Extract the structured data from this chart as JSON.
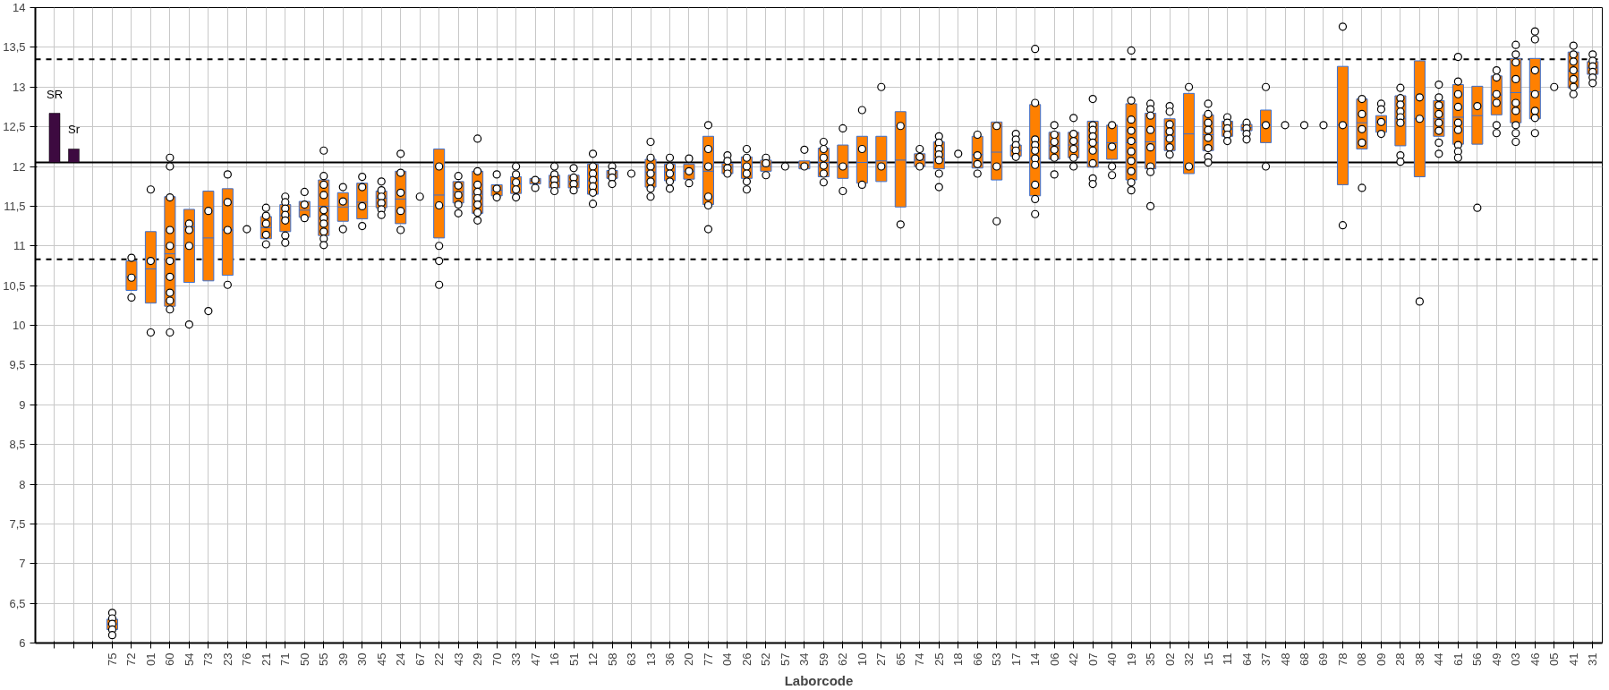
{
  "chart_data": {
    "type": "box",
    "xlabel": "Laborcode",
    "grid": true,
    "marker": "circle",
    "ylim": [
      6,
      14
    ],
    "yticks": [
      6,
      {
        "value": 6.5,
        "label": "6,5"
      },
      7,
      {
        "value": 7.5,
        "label": "7,5"
      },
      8,
      {
        "value": 8.5,
        "label": "8,5"
      },
      9,
      {
        "value": 9.5,
        "label": "9,5"
      },
      10,
      {
        "value": 10.5,
        "label": "10,5"
      },
      11,
      {
        "value": 11.5,
        "label": "11,5"
      },
      12,
      {
        "value": 12.5,
        "label": "12,5"
      },
      13,
      {
        "value": 13.5,
        "label": "13,5"
      },
      14
    ],
    "categories": [
      null,
      null,
      null,
      "75",
      "72",
      "01",
      "60",
      "54",
      "73",
      "23",
      "76",
      "21",
      "71",
      "50",
      "55",
      "39",
      "30",
      "45",
      "24",
      "67",
      "22",
      "43",
      "29",
      "70",
      "33",
      "47",
      "16",
      "51",
      "12",
      "58",
      "63",
      "13",
      "36",
      "20",
      "77",
      "04",
      "26",
      "52",
      "57",
      "34",
      "59",
      "62",
      "10",
      "27",
      "65",
      "74",
      "25",
      "18",
      "66",
      "53",
      "17",
      "14",
      "06",
      "42",
      "07",
      "40",
      "19",
      "35",
      "02",
      "32",
      "15",
      "11",
      "64",
      "37",
      "48",
      "68",
      "69",
      "78",
      "08",
      "09",
      "28",
      "38",
      "44",
      "61",
      "56",
      "49",
      "03",
      "46",
      "05",
      "41",
      "31"
    ],
    "ref_lines": [
      {
        "axis": "y",
        "value": 12.05,
        "line_style": "solid",
        "color": "#000000"
      },
      {
        "axis": "y",
        "value": 13.35,
        "line_style": "dashed",
        "color": "#000000"
      },
      {
        "axis": "y",
        "value": 10.83,
        "line_style": "dashed",
        "color": "#000000"
      }
    ],
    "series": [
      {
        "type": "bar",
        "color": "#3d0a40",
        "values": [
          0.62,
          0.17,
          null,
          null,
          null,
          null,
          null,
          null,
          null,
          null,
          null,
          null,
          null,
          null,
          null,
          null,
          null,
          null,
          null,
          null,
          null,
          null,
          null,
          null,
          null,
          null,
          null,
          null,
          null,
          null,
          null,
          null,
          null,
          null,
          null,
          null,
          null,
          null,
          null,
          null,
          null,
          null,
          null,
          null,
          null,
          null,
          null,
          null,
          null,
          null,
          null,
          null,
          null,
          null,
          null,
          null,
          null,
          null,
          null,
          null,
          null,
          null,
          null,
          null,
          null,
          null,
          null,
          null,
          null,
          null,
          null,
          null,
          null,
          null,
          null,
          null,
          null,
          null,
          null,
          null,
          null
        ],
        "base": [
          12.05,
          12.05,
          null,
          null,
          null,
          null,
          null,
          null,
          null,
          null,
          null,
          null,
          null,
          null,
          null,
          null,
          null,
          null,
          null,
          null,
          null,
          null,
          null,
          null,
          null,
          null,
          null,
          null,
          null,
          null,
          null,
          null,
          null,
          null,
          null,
          null,
          null,
          null,
          null,
          null,
          null,
          null,
          null,
          null,
          null,
          null,
          null,
          null,
          null,
          null,
          null,
          null,
          null,
          null,
          null,
          null,
          null,
          null,
          null,
          null,
          null,
          null,
          null,
          null,
          null,
          null,
          null,
          null,
          null,
          null,
          null,
          null,
          null,
          null,
          null,
          null,
          null,
          null,
          null,
          null,
          null
        ],
        "value_labels": [
          "SR",
          "Sr",
          null,
          null,
          null,
          null,
          null,
          null,
          null,
          null,
          null,
          null,
          null,
          null,
          null,
          null,
          null,
          null,
          null,
          null,
          null,
          null,
          null,
          null,
          null,
          null,
          null,
          null,
          null,
          null,
          null,
          null,
          null,
          null,
          null,
          null,
          null,
          null,
          null,
          null,
          null,
          null,
          null,
          null,
          null,
          null,
          null,
          null,
          null,
          null,
          null,
          null,
          null,
          null,
          null,
          null,
          null,
          null,
          null,
          null,
          null,
          null,
          null,
          null,
          null,
          null,
          null,
          null,
          null,
          null,
          null,
          null,
          null,
          null,
          null,
          null,
          null,
          null,
          null,
          null,
          null
        ]
      },
      {
        "type": "box",
        "color": "#ff8000",
        "boxes": [
          null,
          null,
          null,
          {
            "low": 6.17,
            "q1": 6.17,
            "median": 6.24,
            "q3": 6.3,
            "high": 6.3
          },
          {
            "low": 10.44,
            "q1": 10.44,
            "median": 10.61,
            "q3": 10.81,
            "high": 10.81
          },
          {
            "low": 10.28,
            "q1": 10.28,
            "median": 10.71,
            "q3": 11.18,
            "high": 11.18
          },
          {
            "low": 10.24,
            "q1": 10.24,
            "median": 10.9,
            "q3": 11.62,
            "high": 11.62
          },
          {
            "low": 10.54,
            "q1": 10.54,
            "median": 11.24,
            "q3": 11.46,
            "high": 11.46
          },
          {
            "low": 10.56,
            "q1": 10.56,
            "median": 11.1,
            "q3": 11.69,
            "high": 11.69
          },
          {
            "low": 10.63,
            "q1": 10.63,
            "median": 11.2,
            "q3": 11.72,
            "high": 11.72
          },
          null,
          {
            "low": 11.09,
            "q1": 11.09,
            "median": 11.23,
            "q3": 11.37,
            "high": 11.37
          },
          {
            "low": 11.18,
            "q1": 11.18,
            "median": 11.38,
            "q3": 11.52,
            "high": 11.52
          },
          {
            "low": 11.36,
            "q1": 11.36,
            "median": 11.45,
            "q3": 11.56,
            "high": 11.56
          },
          {
            "low": 11.13,
            "q1": 11.13,
            "median": 11.5,
            "q3": 11.83,
            "high": 11.83
          },
          {
            "low": 11.31,
            "q1": 11.31,
            "median": 11.49,
            "q3": 11.67,
            "high": 11.67
          },
          {
            "low": 11.34,
            "q1": 11.34,
            "median": 11.55,
            "q3": 11.79,
            "high": 11.79
          },
          {
            "low": 11.48,
            "q1": 11.48,
            "median": 11.6,
            "q3": 11.69,
            "high": 11.69
          },
          {
            "low": 11.28,
            "q1": 11.28,
            "median": 11.59,
            "q3": 11.94,
            "high": 11.94
          },
          null,
          {
            "low": 11.1,
            "q1": 11.1,
            "median": 11.64,
            "q3": 12.22,
            "high": 12.22
          },
          {
            "low": 11.54,
            "q1": 11.54,
            "median": 11.68,
            "q3": 11.81,
            "high": 11.81
          },
          {
            "low": 11.41,
            "q1": 11.41,
            "median": 11.65,
            "q3": 11.94,
            "high": 11.94
          },
          {
            "low": 11.63,
            "q1": 11.63,
            "median": 11.7,
            "q3": 11.77,
            "high": 11.77
          },
          {
            "low": 11.66,
            "q1": 11.66,
            "median": 11.78,
            "q3": 11.87,
            "high": 11.87
          },
          {
            "low": 11.78,
            "q1": 11.78,
            "median": 11.82,
            "q3": 11.85,
            "high": 11.85
          },
          {
            "low": 11.73,
            "q1": 11.73,
            "median": 11.81,
            "q3": 11.89,
            "high": 11.89
          },
          {
            "low": 11.73,
            "q1": 11.73,
            "median": 11.81,
            "q3": 11.89,
            "high": 11.89
          },
          {
            "low": 11.65,
            "q1": 11.65,
            "median": 11.82,
            "q3": 12.03,
            "high": 12.03
          },
          {
            "low": 11.85,
            "q1": 11.85,
            "median": 11.9,
            "q3": 11.95,
            "high": 11.95
          },
          null,
          {
            "low": 11.74,
            "q1": 11.74,
            "median": 11.93,
            "q3": 12.09,
            "high": 12.09
          },
          {
            "low": 11.82,
            "q1": 11.82,
            "median": 11.93,
            "q3": 12.03,
            "high": 12.03
          },
          {
            "low": 11.84,
            "q1": 11.84,
            "median": 11.94,
            "q3": 12.03,
            "high": 12.03
          },
          {
            "low": 11.52,
            "q1": 11.52,
            "median": 11.94,
            "q3": 12.38,
            "high": 12.38
          },
          {
            "low": 11.91,
            "q1": 11.91,
            "median": 12.0,
            "q3": 12.04,
            "high": 12.04
          },
          {
            "low": 11.85,
            "q1": 11.85,
            "median": 11.99,
            "q3": 12.12,
            "high": 12.12
          },
          {
            "low": 11.94,
            "q1": 11.94,
            "median": 12.0,
            "q3": 12.08,
            "high": 12.08
          },
          null,
          {
            "low": 11.97,
            "q1": 11.97,
            "median": 12.02,
            "q3": 12.07,
            "high": 12.07
          },
          {
            "low": 11.87,
            "q1": 11.87,
            "median": 12.05,
            "q3": 12.23,
            "high": 12.23
          },
          {
            "low": 11.85,
            "q1": 11.85,
            "median": 12.0,
            "q3": 12.27,
            "high": 12.27
          },
          {
            "low": 11.79,
            "q1": 11.79,
            "median": 12.05,
            "q3": 12.38,
            "high": 12.38
          },
          {
            "low": 11.81,
            "q1": 11.81,
            "median": 12.07,
            "q3": 12.38,
            "high": 12.38
          },
          {
            "low": 11.49,
            "q1": 11.49,
            "median": 12.08,
            "q3": 12.69,
            "high": 12.69
          },
          {
            "low": 12.0,
            "q1": 12.0,
            "median": 12.08,
            "q3": 12.16,
            "high": 12.16
          },
          {
            "low": 11.97,
            "q1": 11.97,
            "median": 12.1,
            "q3": 12.31,
            "high": 12.31
          },
          null,
          {
            "low": 11.98,
            "q1": 11.98,
            "median": 12.15,
            "q3": 12.38,
            "high": 12.38
          },
          {
            "low": 11.83,
            "q1": 11.83,
            "median": 12.18,
            "q3": 12.56,
            "high": 12.56
          },
          {
            "low": 12.13,
            "q1": 12.13,
            "median": 12.2,
            "q3": 12.27,
            "high": 12.27
          },
          {
            "low": 11.63,
            "q1": 11.63,
            "median": 12.1,
            "q3": 12.78,
            "high": 12.78
          },
          {
            "low": 12.09,
            "q1": 12.09,
            "median": 12.26,
            "q3": 12.43,
            "high": 12.43
          },
          {
            "low": 12.11,
            "q1": 12.11,
            "median": 12.27,
            "q3": 12.43,
            "high": 12.43
          },
          {
            "low": 11.99,
            "q1": 11.99,
            "median": 12.3,
            "q3": 12.57,
            "high": 12.57
          },
          {
            "low": 12.09,
            "q1": 12.09,
            "median": 12.3,
            "q3": 12.52,
            "high": 12.52
          },
          {
            "low": 11.83,
            "q1": 11.83,
            "median": 12.3,
            "q3": 12.79,
            "high": 12.79
          },
          {
            "low": 11.97,
            "q1": 11.97,
            "median": 12.31,
            "q3": 12.67,
            "high": 12.67
          },
          {
            "low": 12.2,
            "q1": 12.2,
            "median": 12.38,
            "q3": 12.6,
            "high": 12.6
          },
          {
            "low": 11.91,
            "q1": 11.91,
            "median": 12.41,
            "q3": 12.92,
            "high": 12.92
          },
          {
            "low": 12.2,
            "q1": 12.2,
            "median": 12.4,
            "q3": 12.65,
            "high": 12.65
          },
          {
            "low": 12.38,
            "q1": 12.38,
            "median": 12.47,
            "q3": 12.57,
            "high": 12.57
          },
          {
            "low": 12.45,
            "q1": 12.45,
            "median": 12.49,
            "q3": 12.53,
            "high": 12.53
          },
          {
            "low": 12.3,
            "q1": 12.3,
            "median": 12.52,
            "q3": 12.71,
            "high": 12.71
          },
          null,
          null,
          null,
          {
            "low": 11.77,
            "q1": 11.77,
            "median": 12.52,
            "q3": 13.26,
            "high": 13.26
          },
          {
            "low": 12.22,
            "q1": 12.22,
            "median": 12.55,
            "q3": 12.85,
            "high": 12.85
          },
          {
            "low": 12.43,
            "q1": 12.43,
            "median": 12.56,
            "q3": 12.64,
            "high": 12.64
          },
          {
            "low": 12.26,
            "q1": 12.26,
            "median": 12.6,
            "q3": 12.89,
            "high": 12.89
          },
          {
            "low": 11.87,
            "q1": 11.87,
            "median": 12.6,
            "q3": 13.33,
            "high": 13.33
          },
          {
            "low": 12.38,
            "q1": 12.38,
            "median": 12.6,
            "q3": 12.83,
            "high": 12.83
          },
          {
            "low": 12.28,
            "q1": 12.28,
            "median": 12.62,
            "q3": 13.03,
            "high": 13.03
          },
          {
            "low": 12.28,
            "q1": 12.28,
            "median": 12.64,
            "q3": 13.01,
            "high": 13.01
          },
          {
            "low": 12.65,
            "q1": 12.65,
            "median": 12.9,
            "q3": 13.14,
            "high": 13.14
          },
          {
            "low": 12.55,
            "q1": 12.55,
            "median": 12.93,
            "q3": 13.36,
            "high": 13.36
          },
          {
            "low": 12.6,
            "q1": 12.6,
            "median": 12.94,
            "q3": 13.36,
            "high": 13.36
          },
          null,
          {
            "low": 12.99,
            "q1": 12.99,
            "median": 13.2,
            "q3": 13.44,
            "high": 13.44
          },
          {
            "low": 13.16,
            "q1": 13.16,
            "median": 13.24,
            "q3": 13.32,
            "high": 13.32
          }
        ]
      },
      {
        "type": "scatter",
        "color": "#ffffff",
        "x": [
          "75",
          "75",
          "75",
          "75",
          "75",
          "72",
          "72",
          "72",
          "01",
          "01",
          "01",
          "60",
          "60",
          "60",
          "60",
          "60",
          "60",
          "60",
          "60",
          "60",
          "60",
          "60",
          "54",
          "54",
          "54",
          "54",
          "73",
          "73",
          "23",
          "23",
          "23",
          "23",
          "76",
          "21",
          "21",
          "21",
          "21",
          "21",
          "71",
          "71",
          "71",
          "71",
          "71",
          "71",
          "71",
          "50",
          "50",
          "50",
          "55",
          "55",
          "55",
          "55",
          "55",
          "55",
          "55",
          "55",
          "55",
          "55",
          "39",
          "39",
          "39",
          "30",
          "30",
          "30",
          "30",
          "45",
          "45",
          "45",
          "45",
          "45",
          "45",
          "24",
          "24",
          "24",
          "24",
          "24",
          "67",
          "22",
          "22",
          "22",
          "22",
          "22",
          "43",
          "43",
          "43",
          "43",
          "43",
          "29",
          "29",
          "29",
          "29",
          "29",
          "29",
          "29",
          "29",
          "70",
          "70",
          "70",
          "33",
          "33",
          "33",
          "33",
          "33",
          "47",
          "47",
          "16",
          "16",
          "16",
          "16",
          "16",
          "51",
          "51",
          "51",
          "51",
          "12",
          "12",
          "12",
          "12",
          "12",
          "12",
          "12",
          "58",
          "58",
          "58",
          "58",
          "63",
          "13",
          "13",
          "13",
          "13",
          "13",
          "13",
          "13",
          "36",
          "36",
          "36",
          "36",
          "36",
          "20",
          "20",
          "20",
          "77",
          "77",
          "77",
          "77",
          "77",
          "77",
          "04",
          "04",
          "04",
          "04",
          "26",
          "26",
          "26",
          "26",
          "26",
          "26",
          "52",
          "52",
          "52",
          "57",
          "34",
          "34",
          "59",
          "59",
          "59",
          "59",
          "59",
          "59",
          "62",
          "62",
          "62",
          "10",
          "10",
          "10",
          "27",
          "27",
          "65",
          "65",
          "74",
          "74",
          "74",
          "25",
          "25",
          "25",
          "25",
          "25",
          "25",
          "25",
          "18",
          "66",
          "66",
          "66",
          "66",
          "53",
          "53",
          "53",
          "17",
          "17",
          "17",
          "17",
          "17",
          "14",
          "14",
          "14",
          "14",
          "14",
          "14",
          "14",
          "14",
          "14",
          "14",
          "06",
          "06",
          "06",
          "06",
          "06",
          "06",
          "42",
          "42",
          "42",
          "42",
          "42",
          "42",
          "07",
          "07",
          "07",
          "07",
          "07",
          "07",
          "07",
          "07",
          "07",
          "40",
          "40",
          "40",
          "40",
          "19",
          "19",
          "19",
          "19",
          "19",
          "19",
          "19",
          "19",
          "19",
          "19",
          "35",
          "35",
          "35",
          "35",
          "35",
          "35",
          "35",
          "35",
          "02",
          "02",
          "02",
          "02",
          "02",
          "02",
          "02",
          "32",
          "32",
          "15",
          "15",
          "15",
          "15",
          "15",
          "15",
          "15",
          "15",
          "11",
          "11",
          "11",
          "11",
          "11",
          "64",
          "64",
          "64",
          "64",
          "37",
          "37",
          "37",
          "48",
          "68",
          "69",
          "78",
          "78",
          "78",
          "08",
          "08",
          "08",
          "08",
          "08",
          "09",
          "09",
          "09",
          "09",
          "28",
          "28",
          "28",
          "28",
          "28",
          "28",
          "28",
          "28",
          "38",
          "38",
          "38",
          "44",
          "44",
          "44",
          "44",
          "44",
          "44",
          "44",
          "44",
          "61",
          "61",
          "61",
          "61",
          "61",
          "61",
          "61",
          "61",
          "61",
          "56",
          "56",
          "49",
          "49",
          "49",
          "49",
          "49",
          "49",
          "03",
          "03",
          "03",
          "03",
          "03",
          "03",
          "03",
          "03",
          "03",
          "46",
          "46",
          "46",
          "46",
          "46",
          "46",
          "46",
          "05",
          "41",
          "41",
          "41",
          "41",
          "41",
          "41",
          "41",
          "31",
          "31",
          "31",
          "31",
          "31",
          "31"
        ],
        "values": [
          6.38,
          6.31,
          6.24,
          6.17,
          6.1,
          10.85,
          10.6,
          10.35,
          11.71,
          10.81,
          9.91,
          12.11,
          12.0,
          11.61,
          11.2,
          11.0,
          10.81,
          10.61,
          10.41,
          10.31,
          10.2,
          9.91,
          11.28,
          11.2,
          11.0,
          10.01,
          11.44,
          10.18,
          11.9,
          11.55,
          11.2,
          10.51,
          11.21,
          11.48,
          11.38,
          11.28,
          11.14,
          11.02,
          11.62,
          11.55,
          11.47,
          11.39,
          11.32,
          11.13,
          11.04,
          11.68,
          11.52,
          11.35,
          12.2,
          11.88,
          11.77,
          11.64,
          11.45,
          11.35,
          11.28,
          11.18,
          11.09,
          11.01,
          11.74,
          11.56,
          11.21,
          11.87,
          11.74,
          11.5,
          11.25,
          11.81,
          11.7,
          11.62,
          11.54,
          11.46,
          11.39,
          12.16,
          11.92,
          11.67,
          11.44,
          11.2,
          11.62,
          12.0,
          11.51,
          11.0,
          10.81,
          10.51,
          11.88,
          11.76,
          11.64,
          11.52,
          11.41,
          12.35,
          11.94,
          11.77,
          11.68,
          11.6,
          11.52,
          11.42,
          11.32,
          11.9,
          11.72,
          11.61,
          12.0,
          11.9,
          11.8,
          11.71,
          11.61,
          11.83,
          11.73,
          12.0,
          11.9,
          11.83,
          11.76,
          11.69,
          11.98,
          11.86,
          11.78,
          11.7,
          12.16,
          12.0,
          11.91,
          11.83,
          11.75,
          11.67,
          11.53,
          12.0,
          11.93,
          11.86,
          11.78,
          11.91,
          12.31,
          12.11,
          12.0,
          11.91,
          11.81,
          11.72,
          11.62,
          12.11,
          12.0,
          11.91,
          11.81,
          11.72,
          12.1,
          11.94,
          11.79,
          12.52,
          12.22,
          12.0,
          11.62,
          11.51,
          11.21,
          12.14,
          12.07,
          11.98,
          11.91,
          12.22,
          12.11,
          12.0,
          11.91,
          11.81,
          11.71,
          12.11,
          12.04,
          11.89,
          12.0,
          12.21,
          12.0,
          12.31,
          12.22,
          12.11,
          12.01,
          11.91,
          11.8,
          12.48,
          12.0,
          11.69,
          12.71,
          12.22,
          11.77,
          13.0,
          12.0,
          12.51,
          11.27,
          12.22,
          12.12,
          12.0,
          12.38,
          12.3,
          12.22,
          12.15,
          12.08,
          11.91,
          11.74,
          12.16,
          12.4,
          12.14,
          12.03,
          11.91,
          12.51,
          12.0,
          11.31,
          12.41,
          12.34,
          12.27,
          12.2,
          12.12,
          13.48,
          12.8,
          12.34,
          12.27,
          12.2,
          12.1,
          12.02,
          11.77,
          11.59,
          11.4,
          12.52,
          12.4,
          12.31,
          12.21,
          12.11,
          11.9,
          12.61,
          12.41,
          12.32,
          12.22,
          12.11,
          12.0,
          12.85,
          12.52,
          12.46,
          12.38,
          12.3,
          12.2,
          12.04,
          11.85,
          11.78,
          12.52,
          12.25,
          12.0,
          11.89,
          13.46,
          12.83,
          12.59,
          12.45,
          12.32,
          12.19,
          12.07,
          11.94,
          11.8,
          11.7,
          12.79,
          12.72,
          12.64,
          12.46,
          12.24,
          12.0,
          11.93,
          11.5,
          12.76,
          12.69,
          12.53,
          12.44,
          12.35,
          12.24,
          12.15,
          13.0,
          12.0,
          12.79,
          12.66,
          12.55,
          12.46,
          12.36,
          12.23,
          12.12,
          12.05,
          12.62,
          12.55,
          12.48,
          12.4,
          12.32,
          12.55,
          12.48,
          12.41,
          12.34,
          13.0,
          12.52,
          12.0,
          12.52,
          12.52,
          12.52,
          13.76,
          12.52,
          11.26,
          12.85,
          12.66,
          12.47,
          12.3,
          11.73,
          12.79,
          12.72,
          12.56,
          12.41,
          12.99,
          12.86,
          12.78,
          12.69,
          12.62,
          12.55,
          12.14,
          12.06,
          12.87,
          12.6,
          10.3,
          13.03,
          12.87,
          12.77,
          12.66,
          12.55,
          12.45,
          12.3,
          12.16,
          13.38,
          13.07,
          12.91,
          12.75,
          12.55,
          12.46,
          12.27,
          12.19,
          12.11,
          12.76,
          11.48,
          13.21,
          13.12,
          12.91,
          12.8,
          12.52,
          12.42,
          13.53,
          13.41,
          13.31,
          13.1,
          12.8,
          12.7,
          12.52,
          12.42,
          12.31,
          13.7,
          13.6,
          13.21,
          12.91,
          12.7,
          12.61,
          12.42,
          13.0,
          13.52,
          13.41,
          13.32,
          13.21,
          13.1,
          13.0,
          12.91,
          13.41,
          13.33,
          13.26,
          13.19,
          13.12,
          13.05
        ]
      }
    ]
  }
}
